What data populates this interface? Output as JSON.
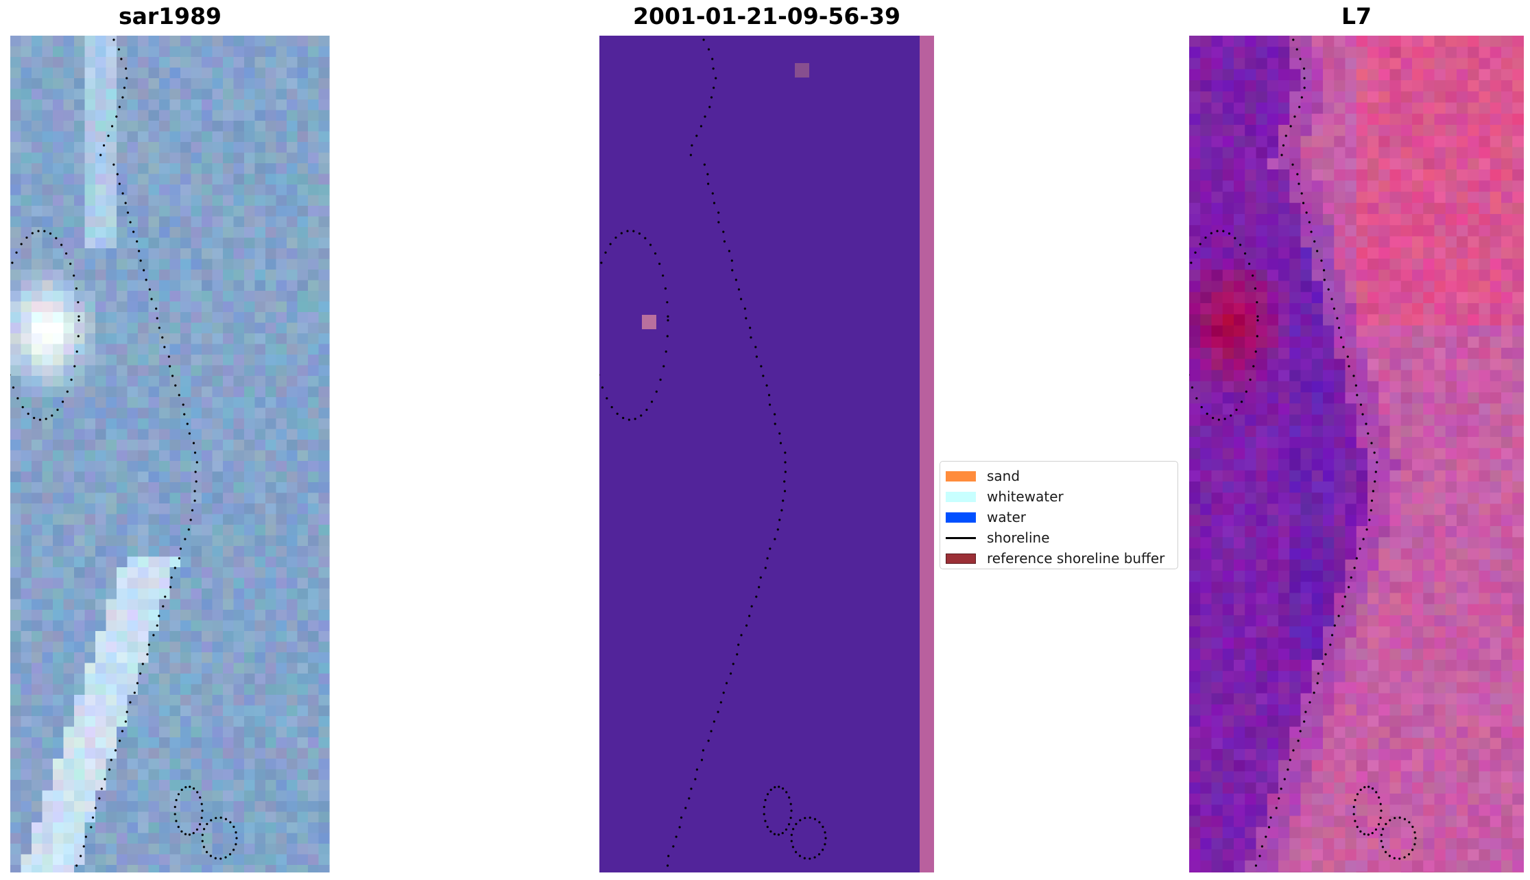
{
  "panels": [
    {
      "title": "sar1989"
    },
    {
      "title": "2001-01-21-09-56-39"
    },
    {
      "title": "L7"
    }
  ],
  "legend": {
    "items": [
      {
        "label": "sand",
        "color": "#ff8c3c",
        "kind": "patch"
      },
      {
        "label": "whitewater",
        "color": "#c8ffff",
        "kind": "patch"
      },
      {
        "label": "water",
        "color": "#0050ff",
        "kind": "patch"
      },
      {
        "label": "shoreline",
        "color": "#000000",
        "kind": "line"
      },
      {
        "label": "reference shoreline buffer",
        "color": "#9b2f36",
        "kind": "patch"
      }
    ]
  },
  "colors": {
    "classification_background": "#52249a",
    "classification_strip": "#b9609e",
    "rgb_base": "#7a9dc2",
    "falsecolor_base": "#a848a6"
  }
}
